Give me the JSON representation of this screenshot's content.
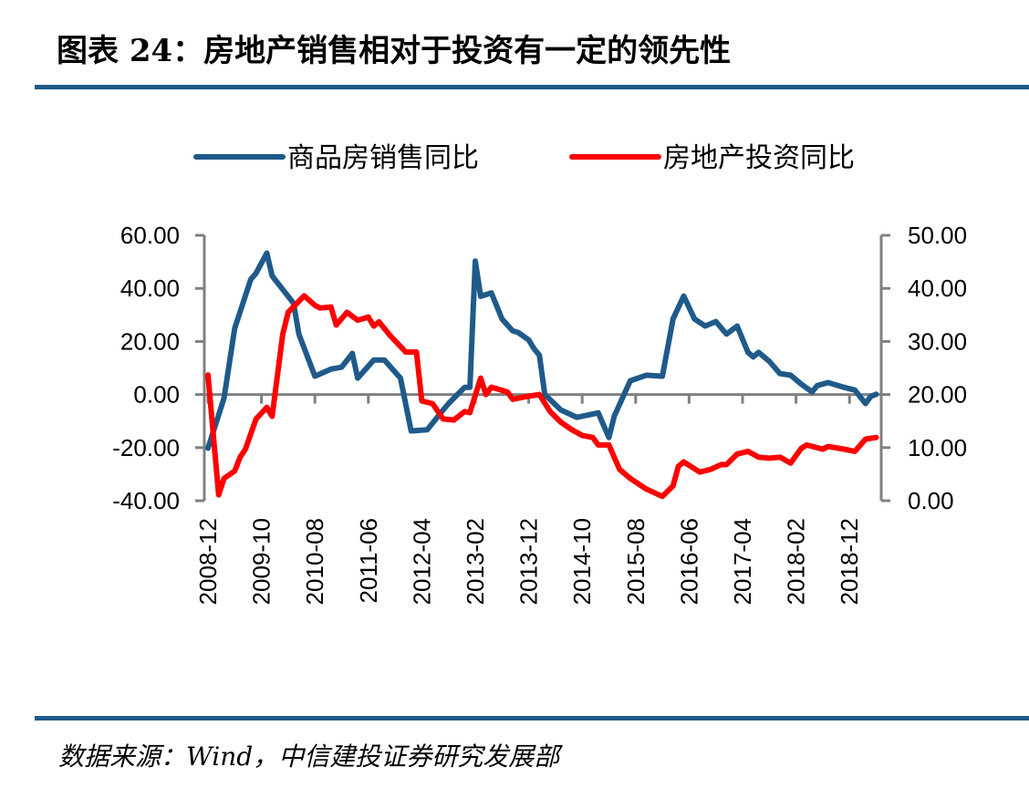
{
  "title": "图表 24：房地产销售相对于投资有一定的领先性",
  "source": "数据来源：Wind，中信建投证券研究发展部",
  "chart_data": {
    "type": "line",
    "title": "图表 24：房地产销售相对于投资有一定的领先性",
    "legend_position": "top",
    "grid": false,
    "x_ticks": [
      "2008-12",
      "2009-10",
      "2010-08",
      "2011-06",
      "2012-04",
      "2013-02",
      "2013-12",
      "2014-10",
      "2015-08",
      "2016-06",
      "2017-04",
      "2018-02",
      "2018-12"
    ],
    "x_range": [
      "2008-12",
      "2019-05"
    ],
    "y_left": {
      "ticks": [
        "60.00",
        "40.00",
        "20.00",
        "0.00",
        "-20.00",
        "-40.00"
      ],
      "range": [
        -40,
        60
      ]
    },
    "y_right": {
      "ticks": [
        "50.00",
        "40.00",
        "30.00",
        "20.00",
        "10.00",
        "0.00"
      ],
      "range": [
        0,
        50
      ]
    },
    "series": [
      {
        "name": "商品房销售同比",
        "axis": "left",
        "color": "#1f5a8a",
        "points": [
          [
            "2008-12",
            -20.2
          ],
          [
            "2009-03",
            -1.3
          ],
          [
            "2009-05",
            25
          ],
          [
            "2009-08",
            43.4
          ],
          [
            "2009-09",
            45.7
          ],
          [
            "2009-11",
            53.3
          ],
          [
            "2009-12",
            44.7
          ],
          [
            "2010-04",
            34.4
          ],
          [
            "2010-05",
            22.8
          ],
          [
            "2010-08",
            6.9
          ],
          [
            "2010-11",
            9.6
          ],
          [
            "2011-01",
            10.3
          ],
          [
            "2011-03",
            15.5
          ],
          [
            "2011-04",
            6.2
          ],
          [
            "2011-07",
            13
          ],
          [
            "2011-09",
            13
          ],
          [
            "2011-12",
            6.2
          ],
          [
            "2012-02",
            -13.7
          ],
          [
            "2012-05",
            -13.3
          ],
          [
            "2012-08",
            -5.8
          ],
          [
            "2012-09",
            -3.4
          ],
          [
            "2012-12",
            2.7
          ],
          [
            "2013-01",
            2.7
          ],
          [
            "2013-02",
            50.3
          ],
          [
            "2013-03",
            37
          ],
          [
            "2013-05",
            38.3
          ],
          [
            "2013-07",
            28.5
          ],
          [
            "2013-09",
            24
          ],
          [
            "2013-10",
            23.4
          ],
          [
            "2013-12",
            20.6
          ],
          [
            "2014-01",
            17.2
          ],
          [
            "2014-02",
            14.8
          ],
          [
            "2014-03",
            0
          ],
          [
            "2014-06",
            -5.8
          ],
          [
            "2014-09",
            -8.6
          ],
          [
            "2015-01",
            -6.9
          ],
          [
            "2015-03",
            -16.2
          ],
          [
            "2015-04",
            -8.1
          ],
          [
            "2015-07",
            5.2
          ],
          [
            "2015-10",
            7.3
          ],
          [
            "2016-01",
            6.9
          ],
          [
            "2016-03",
            28.5
          ],
          [
            "2016-05",
            37.1
          ],
          [
            "2016-07",
            28.5
          ],
          [
            "2016-09",
            25.8
          ],
          [
            "2016-11",
            27.5
          ],
          [
            "2017-01",
            22.8
          ],
          [
            "2017-03",
            25.8
          ],
          [
            "2017-05",
            15.9
          ],
          [
            "2017-06",
            14.2
          ],
          [
            "2017-07",
            15.9
          ],
          [
            "2017-09",
            12.5
          ],
          [
            "2017-11",
            7.9
          ],
          [
            "2018-01",
            7.3
          ],
          [
            "2018-03",
            3.9
          ],
          [
            "2018-05",
            1
          ],
          [
            "2018-06",
            3.4
          ],
          [
            "2018-08",
            4.5
          ],
          [
            "2018-11",
            2.7
          ],
          [
            "2019-01",
            1.7
          ],
          [
            "2019-03",
            -3.4
          ],
          [
            "2019-04",
            -0.7
          ],
          [
            "2019-05",
            0.1
          ]
        ]
      },
      {
        "name": "房地产投资同比",
        "axis": "right",
        "color": "#ff0000",
        "points": [
          [
            "2008-12",
            23.7
          ],
          [
            "2009-02",
            1.1
          ],
          [
            "2009-03",
            4.2
          ],
          [
            "2009-05",
            5.6
          ],
          [
            "2009-06",
            8.2
          ],
          [
            "2009-07",
            9.7
          ],
          [
            "2009-09",
            15.4
          ],
          [
            "2009-11",
            17.6
          ],
          [
            "2009-12",
            15.9
          ],
          [
            "2010-02",
            31.4
          ],
          [
            "2010-03",
            35.5
          ],
          [
            "2010-06",
            38.6
          ],
          [
            "2010-08",
            36.8
          ],
          [
            "2010-09",
            36.3
          ],
          [
            "2010-11",
            36.5
          ],
          [
            "2010-12",
            33.1
          ],
          [
            "2011-02",
            35.5
          ],
          [
            "2011-04",
            34
          ],
          [
            "2011-06",
            34.6
          ],
          [
            "2011-07",
            32.9
          ],
          [
            "2011-08",
            33.7
          ],
          [
            "2011-10",
            31.2
          ],
          [
            "2012-01",
            28
          ],
          [
            "2012-03",
            28
          ],
          [
            "2012-04",
            18.8
          ],
          [
            "2012-06",
            18.3
          ],
          [
            "2012-08",
            15.4
          ],
          [
            "2012-10",
            15.2
          ],
          [
            "2012-12",
            16.8
          ],
          [
            "2013-01",
            16.6
          ],
          [
            "2013-03",
            23.1
          ],
          [
            "2013-04",
            20
          ],
          [
            "2013-05",
            21.4
          ],
          [
            "2013-08",
            20.5
          ],
          [
            "2013-09",
            19.1
          ],
          [
            "2013-12",
            19.7
          ],
          [
            "2014-02",
            20
          ],
          [
            "2014-04",
            16.8
          ],
          [
            "2014-06",
            14.8
          ],
          [
            "2014-08",
            13.4
          ],
          [
            "2014-10",
            12.3
          ],
          [
            "2014-12",
            11.9
          ],
          [
            "2015-01",
            10.5
          ],
          [
            "2015-03",
            10.5
          ],
          [
            "2015-05",
            5.9
          ],
          [
            "2015-07",
            4.2
          ],
          [
            "2015-10",
            2.2
          ],
          [
            "2016-01",
            0.8
          ],
          [
            "2016-03",
            2.8
          ],
          [
            "2016-04",
            6.5
          ],
          [
            "2016-05",
            7.3
          ],
          [
            "2016-08",
            5.4
          ],
          [
            "2016-10",
            5.9
          ],
          [
            "2016-12",
            6.8
          ],
          [
            "2017-01",
            6.8
          ],
          [
            "2017-03",
            8.8
          ],
          [
            "2017-05",
            9.3
          ],
          [
            "2017-07",
            8.2
          ],
          [
            "2017-09",
            8
          ],
          [
            "2017-11",
            8.2
          ],
          [
            "2018-01",
            7.1
          ],
          [
            "2018-03",
            9.9
          ],
          [
            "2018-04",
            10.5
          ],
          [
            "2018-07",
            9.7
          ],
          [
            "2018-08",
            10.2
          ],
          [
            "2018-11",
            9.7
          ],
          [
            "2019-01",
            9.3
          ],
          [
            "2019-03",
            11.6
          ],
          [
            "2019-05",
            11.9
          ]
        ]
      }
    ]
  }
}
